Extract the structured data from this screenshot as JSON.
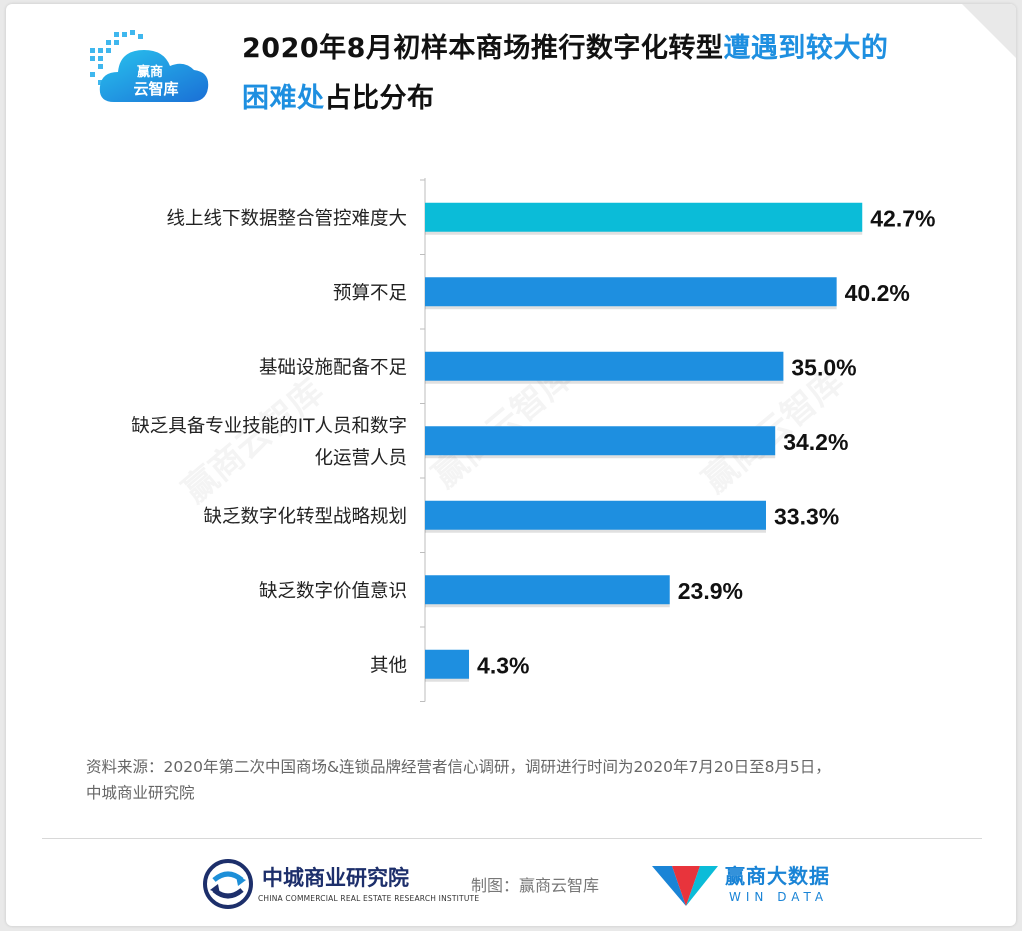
{
  "logo": {
    "line1": "赢商",
    "line2": "云智库"
  },
  "title": {
    "part1": "2020年8月初样本商场推行数字化转型",
    "highlight1": "遭遇到较大的",
    "highlight2": "困难处",
    "part2": "占比分布"
  },
  "chart_data": {
    "type": "bar",
    "orientation": "horizontal",
    "categories": [
      [
        "线上线下数据整合管控难度大"
      ],
      [
        "预算不足"
      ],
      [
        "基础设施配备不足"
      ],
      [
        "缺乏具备专业技能的IT人员和数字",
        "化运营人员"
      ],
      [
        "缺乏数字化转型战略规划"
      ],
      [
        "缺乏数字价值意识"
      ],
      [
        "其他"
      ]
    ],
    "values": [
      42.7,
      40.2,
      35.0,
      34.2,
      33.3,
      23.9,
      4.3
    ],
    "labels": [
      "42.7%",
      "40.2%",
      "35.0%",
      "34.2%",
      "33.3%",
      "23.9%",
      "4.3%"
    ],
    "unit": "%",
    "xlim": [
      0,
      100
    ],
    "colors": {
      "highlight": "#0bbcd8",
      "default": "#1e8fe0"
    },
    "grid": false
  },
  "watermark": "赢商云智库",
  "source": {
    "line1": "资料来源：2020年第二次中国商场&连锁品牌经营者信心调研，调研进行时间为2020年7月20日至8月5日，",
    "line2": "中城商业研究院"
  },
  "footer": {
    "org_name": "中城商业研究院",
    "org_en": "CHINA COMMERCIAL REAL ESTATE RESEARCH INSTITUTE",
    "maker": "制图：赢商云智库",
    "brand_name": "赢商大数据",
    "brand_en": "WIN DATA"
  }
}
